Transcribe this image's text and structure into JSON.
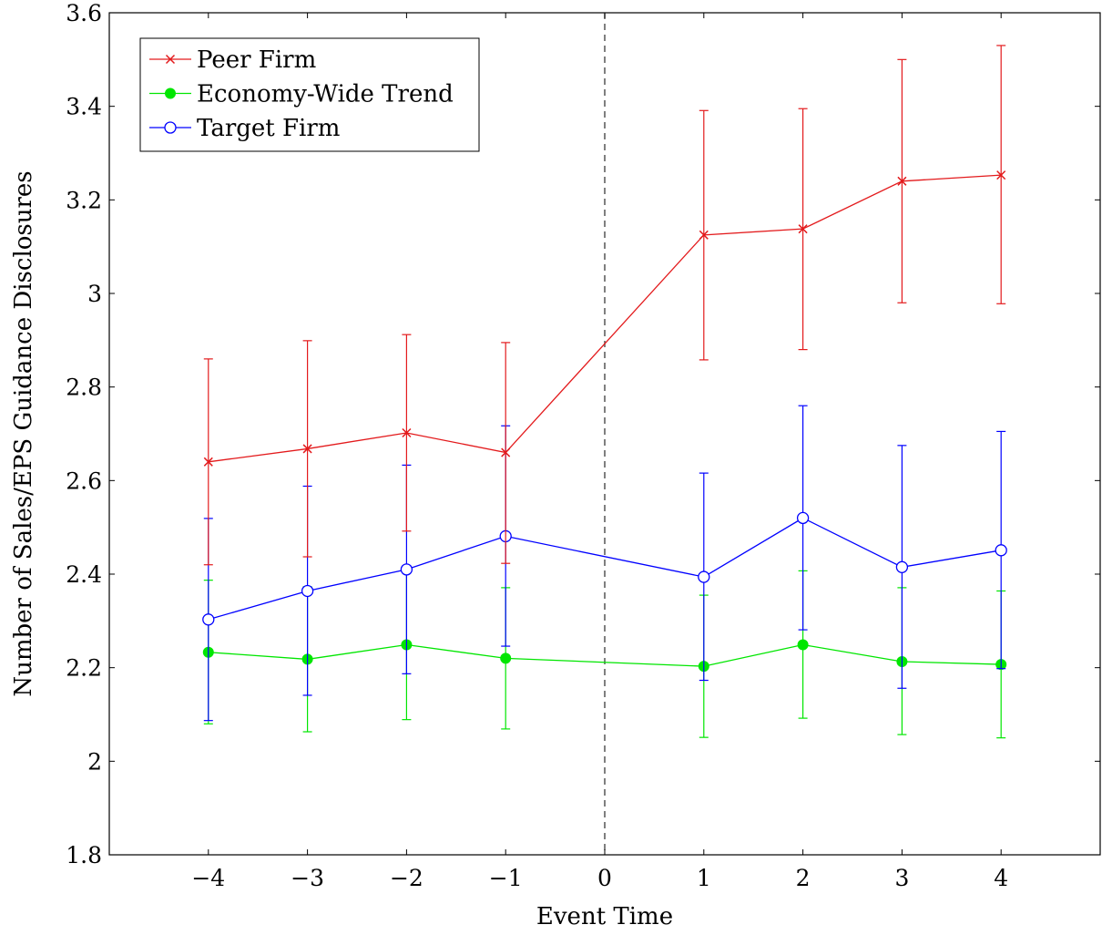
{
  "chart_data": {
    "type": "line",
    "title": "",
    "xlabel": "Event Time",
    "ylabel": "Number of Sales/EPS Guidance Disclosures",
    "xlim": [
      -5,
      5
    ],
    "ylim": [
      1.8,
      3.6
    ],
    "xticks": [
      -4,
      -3,
      -2,
      -1,
      0,
      1,
      2,
      3,
      4
    ],
    "xtick_labels": [
      "−4",
      "−3",
      "−2",
      "−1",
      "0",
      "1",
      "2",
      "3",
      "4"
    ],
    "yticks": [
      1.8,
      2,
      2.2,
      2.4,
      2.6,
      2.8,
      3,
      3.2,
      3.4,
      3.6
    ],
    "ytick_labels": [
      "1.8",
      "2",
      "2.2",
      "2.4",
      "2.6",
      "2.8",
      "3",
      "3.2",
      "3.4",
      "3.6"
    ],
    "reference_line": {
      "x": 0,
      "style": "dashed",
      "color": "#555555"
    },
    "legend_position": "top-left",
    "grid": false,
    "series": [
      {
        "name": "Peer Firm",
        "color": "#e31a1c",
        "marker": "x",
        "x": [
          -4,
          -3,
          -2,
          -1,
          1,
          2,
          3,
          4
        ],
        "y": [
          2.64,
          2.668,
          2.702,
          2.66,
          3.125,
          3.138,
          3.24,
          3.253
        ],
        "err_low": [
          2.42,
          2.437,
          2.492,
          2.423,
          2.858,
          2.88,
          2.98,
          2.978
        ],
        "err_high": [
          2.86,
          2.899,
          2.912,
          2.895,
          3.391,
          3.395,
          3.5,
          3.53
        ]
      },
      {
        "name": "Economy-Wide Trend",
        "color": "#00e600",
        "marker": "filled-circle",
        "x": [
          -4,
          -3,
          -2,
          -1,
          1,
          2,
          3,
          4
        ],
        "y": [
          2.233,
          2.218,
          2.249,
          2.22,
          2.203,
          2.249,
          2.213,
          2.207
        ],
        "err_low": [
          2.08,
          2.063,
          2.089,
          2.069,
          2.051,
          2.092,
          2.057,
          2.05
        ],
        "err_high": [
          2.387,
          2.373,
          2.41,
          2.371,
          2.355,
          2.407,
          2.371,
          2.364
        ]
      },
      {
        "name": "Target Firm",
        "color": "#0000ff",
        "marker": "open-circle",
        "x": [
          -4,
          -3,
          -2,
          -1,
          1,
          2,
          3,
          4
        ],
        "y": [
          2.303,
          2.364,
          2.41,
          2.481,
          2.394,
          2.52,
          2.415,
          2.451
        ],
        "err_low": [
          2.087,
          2.141,
          2.187,
          2.246,
          2.173,
          2.281,
          2.156,
          2.198
        ],
        "err_high": [
          2.519,
          2.588,
          2.633,
          2.717,
          2.616,
          2.76,
          2.675,
          2.705
        ]
      }
    ]
  }
}
